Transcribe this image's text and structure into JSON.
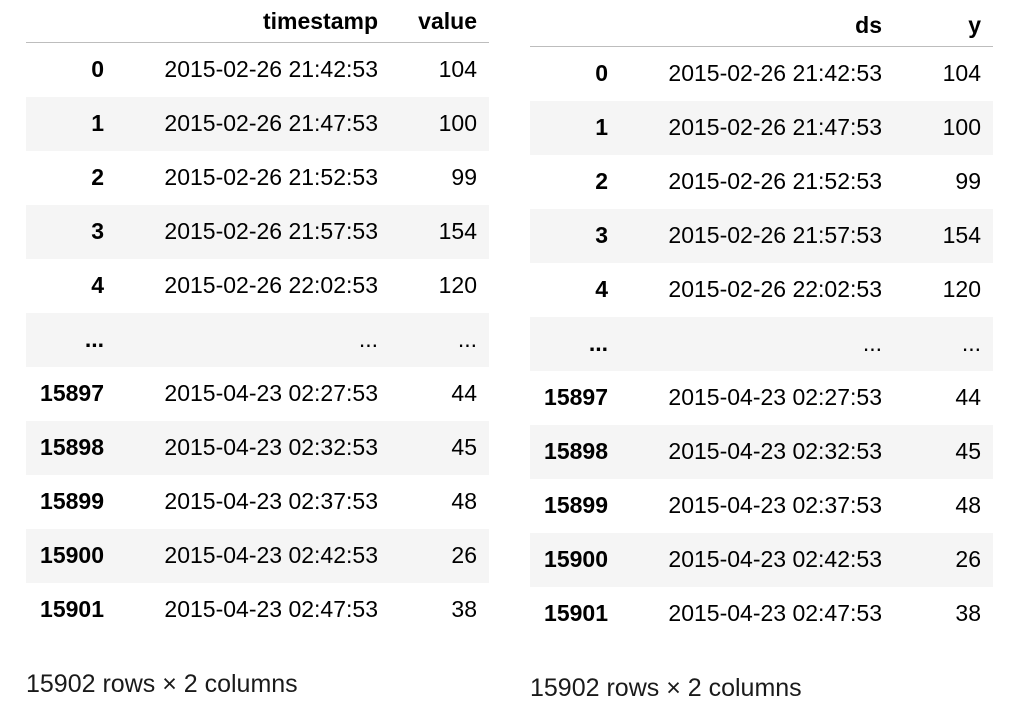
{
  "left": {
    "columns": [
      "timestamp",
      "value"
    ],
    "rows": [
      {
        "index": "0",
        "a": "2015-02-26 21:42:53",
        "b": "104"
      },
      {
        "index": "1",
        "a": "2015-02-26 21:47:53",
        "b": "100"
      },
      {
        "index": "2",
        "a": "2015-02-26 21:52:53",
        "b": "99"
      },
      {
        "index": "3",
        "a": "2015-02-26 21:57:53",
        "b": "154"
      },
      {
        "index": "4",
        "a": "2015-02-26 22:02:53",
        "b": "120"
      },
      {
        "index": "...",
        "a": "...",
        "b": "..."
      },
      {
        "index": "15897",
        "a": "2015-04-23 02:27:53",
        "b": "44"
      },
      {
        "index": "15898",
        "a": "2015-04-23 02:32:53",
        "b": "45"
      },
      {
        "index": "15899",
        "a": "2015-04-23 02:37:53",
        "b": "48"
      },
      {
        "index": "15900",
        "a": "2015-04-23 02:42:53",
        "b": "26"
      },
      {
        "index": "15901",
        "a": "2015-04-23 02:47:53",
        "b": "38"
      }
    ],
    "shape": "15902 rows × 2 columns"
  },
  "right": {
    "columns": [
      "ds",
      "y"
    ],
    "rows": [
      {
        "index": "0",
        "a": "2015-02-26 21:42:53",
        "b": "104"
      },
      {
        "index": "1",
        "a": "2015-02-26 21:47:53",
        "b": "100"
      },
      {
        "index": "2",
        "a": "2015-02-26 21:52:53",
        "b": "99"
      },
      {
        "index": "3",
        "a": "2015-02-26 21:57:53",
        "b": "154"
      },
      {
        "index": "4",
        "a": "2015-02-26 22:02:53",
        "b": "120"
      },
      {
        "index": "...",
        "a": "...",
        "b": "..."
      },
      {
        "index": "15897",
        "a": "2015-04-23 02:27:53",
        "b": "44"
      },
      {
        "index": "15898",
        "a": "2015-04-23 02:32:53",
        "b": "45"
      },
      {
        "index": "15899",
        "a": "2015-04-23 02:37:53",
        "b": "48"
      },
      {
        "index": "15900",
        "a": "2015-04-23 02:42:53",
        "b": "26"
      },
      {
        "index": "15901",
        "a": "2015-04-23 02:47:53",
        "b": "38"
      }
    ],
    "shape": "15902 rows × 2 columns"
  },
  "colors": {
    "stripe": "#f5f5f5",
    "header_rule": "#bdbdbd",
    "text": "#000000"
  }
}
